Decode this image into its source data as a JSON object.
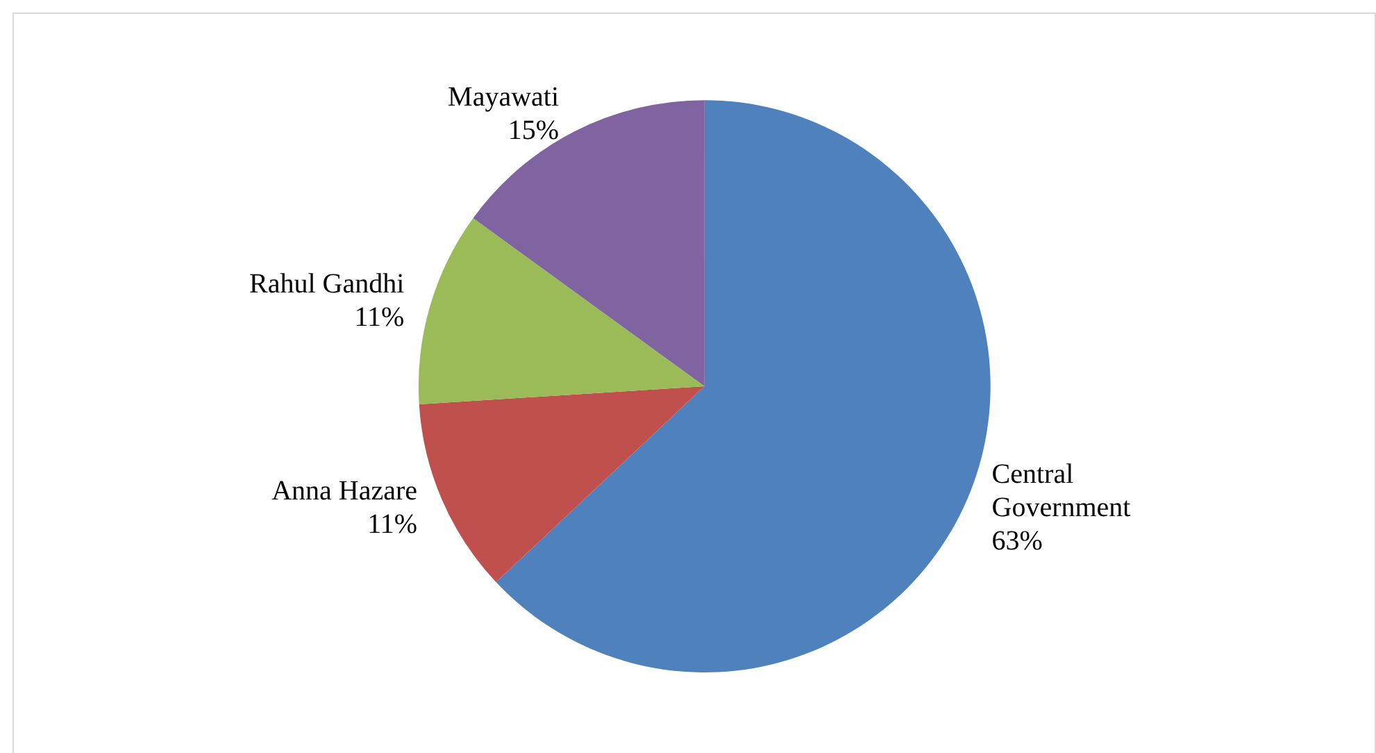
{
  "chart_data": {
    "type": "pie",
    "categories": [
      "Central Government",
      "Anna Hazare",
      "Rahul Gandhi",
      "Mayawati"
    ],
    "values": [
      63,
      11,
      11,
      15
    ],
    "value_labels": [
      "63%",
      "11%",
      "11%",
      "15%"
    ],
    "colors": [
      "#4f81bd",
      "#c0504d",
      "#9bbb59",
      "#8064a2"
    ],
    "legend": false
  }
}
